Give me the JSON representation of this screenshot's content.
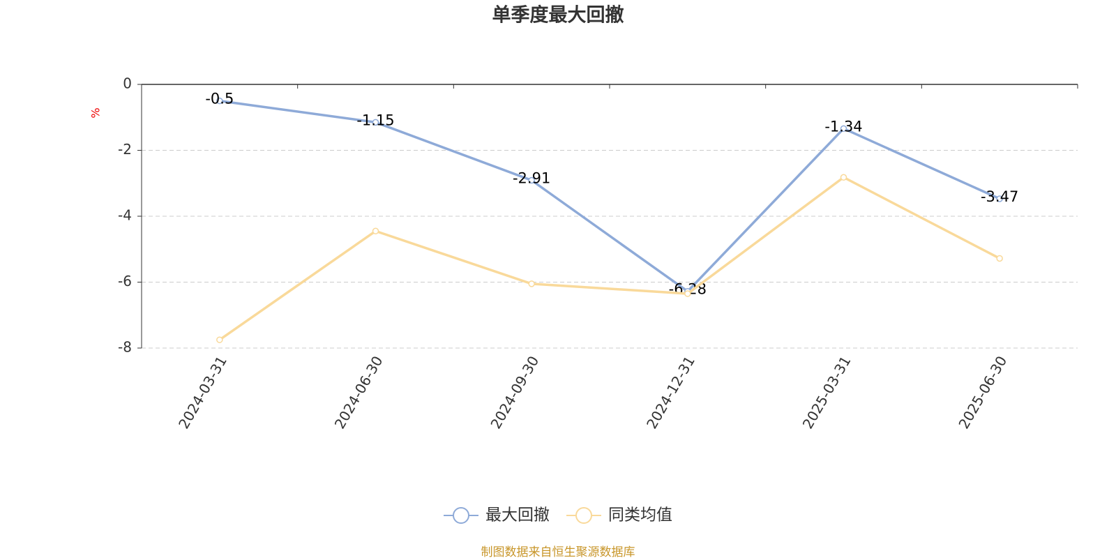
{
  "chart_data": {
    "type": "line",
    "title": "单季度最大回撤",
    "y_label": "%",
    "categories": [
      "2024-03-31",
      "2024-06-30",
      "2024-09-30",
      "2024-12-31",
      "2025-03-31",
      "2025-06-30"
    ],
    "series": [
      {
        "name": "最大回撤",
        "color": "#8eaad8",
        "values": [
          -0.5,
          -1.15,
          -2.91,
          -6.28,
          -1.34,
          -3.47
        ],
        "labels": true
      },
      {
        "name": "同类均值",
        "color": "#f9d99a",
        "values": [
          -7.75,
          -4.45,
          -6.05,
          -6.35,
          -2.82,
          -5.28
        ],
        "labels": false
      }
    ],
    "ylim": [
      -8,
      0
    ],
    "yticks": [
      0,
      -2,
      -4,
      -6,
      -8
    ],
    "grid": true,
    "legend": "bottom",
    "source": "制图数据来自恒生聚源数据库"
  }
}
